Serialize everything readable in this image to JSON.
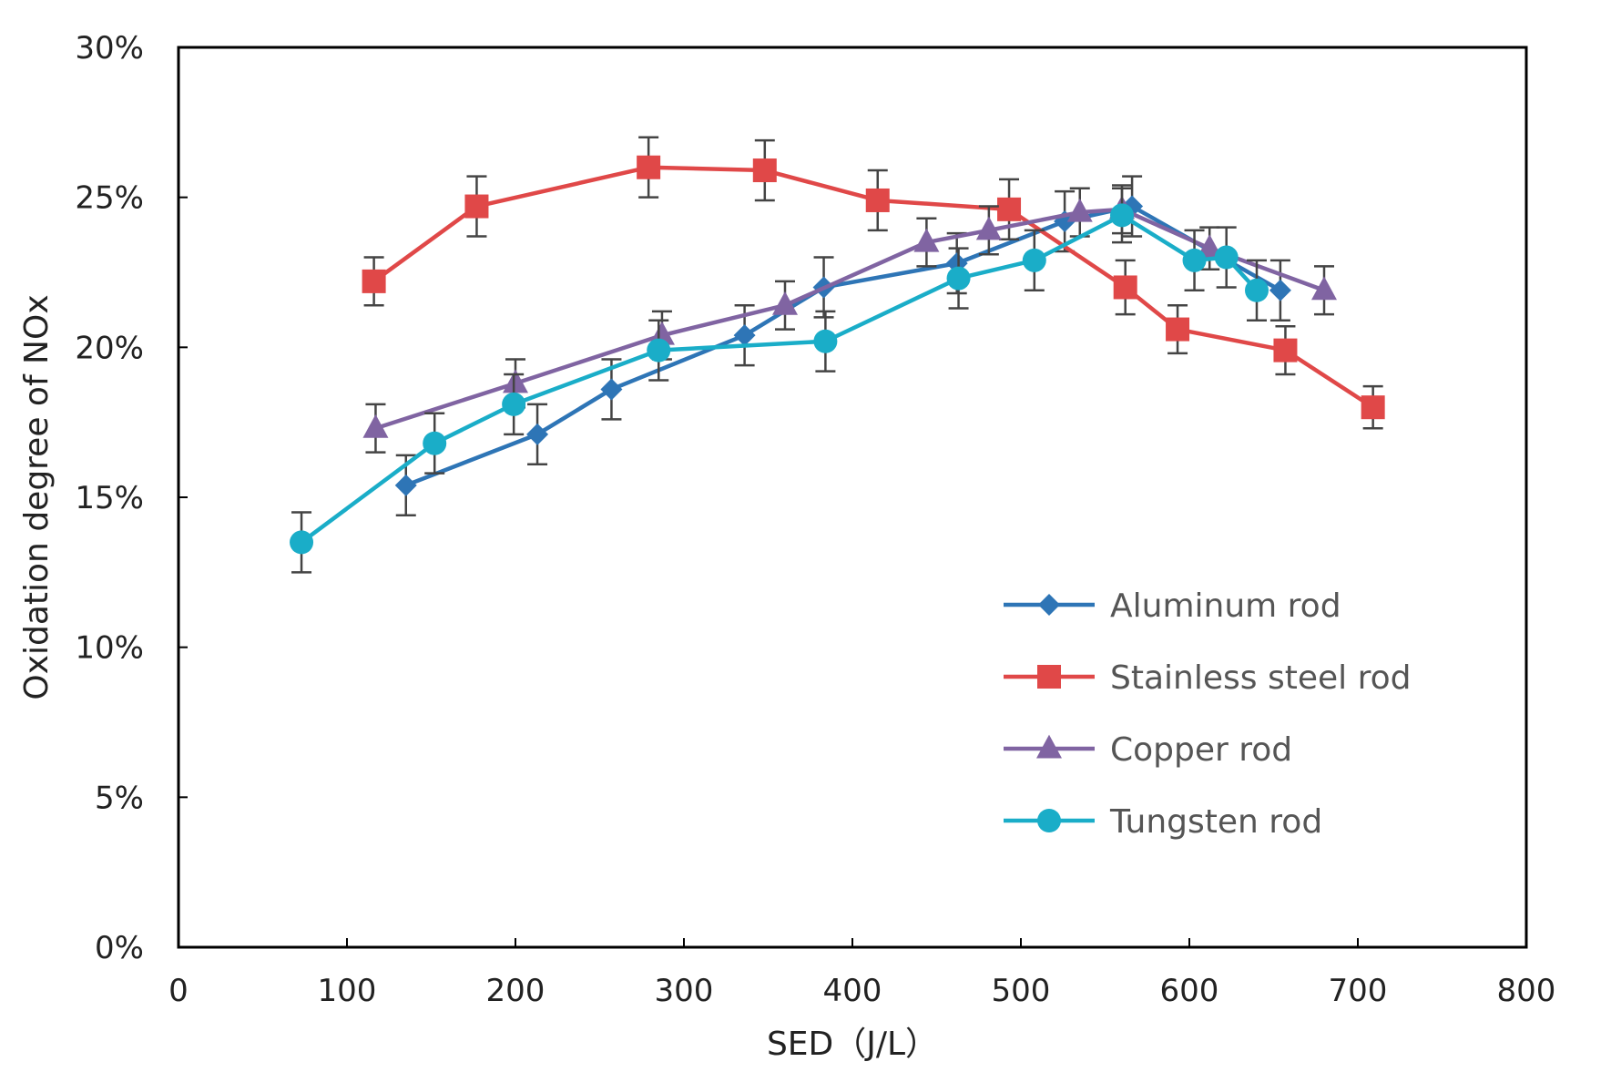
{
  "chart_data": {
    "type": "line",
    "title": "",
    "xlabel": "SED（J/L）",
    "ylabel": "Oxidation degree of NOx",
    "xlim": [
      0,
      800
    ],
    "ylim": [
      0,
      30
    ],
    "xticks": [
      0,
      100,
      200,
      300,
      400,
      500,
      600,
      700,
      800
    ],
    "yticks": [
      0,
      5,
      10,
      15,
      20,
      25,
      30
    ],
    "ytick_labels": [
      "0%",
      "5%",
      "10%",
      "15%",
      "20%",
      "25%",
      "30%"
    ],
    "grid": false,
    "legend_position": "lower-right",
    "series": [
      {
        "name": "Aluminum rod",
        "color": "#2E75B6",
        "marker": "diamond",
        "x": [
          135,
          213,
          257,
          336,
          383,
          462,
          526,
          566,
          654
        ],
        "y": [
          15.4,
          17.1,
          18.6,
          20.4,
          22.0,
          22.8,
          24.2,
          24.7,
          21.9
        ],
        "err": [
          1.0,
          1.0,
          1.0,
          1.0,
          1.0,
          1.0,
          1.0,
          1.0,
          1.0
        ]
      },
      {
        "name": "Stainless steel rod",
        "color": "#E04848",
        "marker": "square",
        "x": [
          116,
          177,
          279,
          348,
          415,
          493,
          562,
          593,
          657,
          709
        ],
        "y": [
          22.2,
          24.7,
          26.0,
          25.9,
          24.9,
          24.6,
          22.0,
          20.6,
          19.9,
          18.0
        ],
        "err": [
          0.8,
          1.0,
          1.0,
          1.0,
          1.0,
          1.0,
          0.9,
          0.8,
          0.8,
          0.7
        ]
      },
      {
        "name": "Copper rod",
        "color": "#8064A2",
        "marker": "triangle",
        "x": [
          117,
          200,
          287,
          360,
          444,
          481,
          535,
          560,
          612,
          680
        ],
        "y": [
          17.3,
          18.8,
          20.4,
          21.4,
          23.5,
          23.9,
          24.5,
          24.6,
          23.3,
          21.9
        ],
        "err": [
          0.8,
          0.8,
          0.8,
          0.8,
          0.8,
          0.8,
          0.8,
          0.8,
          0.7,
          0.8
        ]
      },
      {
        "name": "Tungsten rod",
        "color": "#1AADC8",
        "marker": "circle",
        "x": [
          73,
          152,
          199,
          285,
          384,
          463,
          508,
          560,
          603,
          622,
          640
        ],
        "y": [
          13.5,
          16.8,
          18.1,
          19.9,
          20.2,
          22.3,
          22.9,
          24.4,
          22.9,
          23.0,
          21.9
        ],
        "err": [
          1.0,
          1.0,
          1.0,
          1.0,
          1.0,
          1.0,
          1.0,
          0.9,
          1.0,
          1.0,
          1.0
        ]
      }
    ]
  }
}
